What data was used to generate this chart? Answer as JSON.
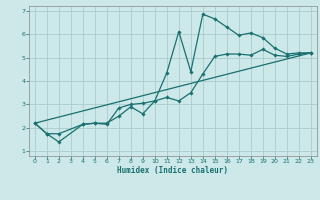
{
  "xlabel": "Humidex (Indice chaleur)",
  "background_color": "#cce8e8",
  "grid_color": "#aacccc",
  "line_color": "#1a7070",
  "xlim": [
    -0.5,
    23.5
  ],
  "ylim": [
    0.8,
    7.2
  ],
  "xticks": [
    0,
    1,
    2,
    3,
    4,
    5,
    6,
    7,
    8,
    9,
    10,
    11,
    12,
    13,
    14,
    15,
    16,
    17,
    18,
    19,
    20,
    21,
    22,
    23
  ],
  "yticks": [
    1,
    2,
    3,
    4,
    5,
    6,
    7
  ],
  "line1_x": [
    0,
    1,
    2,
    4,
    5,
    6,
    7,
    8,
    9,
    10,
    11,
    12,
    13,
    14,
    15,
    16,
    17,
    18,
    19,
    20,
    21,
    22,
    23
  ],
  "line1_y": [
    2.2,
    1.75,
    1.4,
    2.15,
    2.2,
    2.15,
    2.85,
    3.0,
    3.05,
    3.15,
    4.35,
    6.1,
    4.4,
    6.85,
    6.65,
    6.3,
    5.95,
    6.05,
    5.85,
    5.4,
    5.15,
    5.2,
    5.2
  ],
  "line2_x": [
    0,
    1,
    2,
    4,
    5,
    6,
    7,
    8,
    9,
    10,
    11,
    12,
    13,
    14,
    15,
    16,
    17,
    18,
    19,
    20,
    21,
    22,
    23
  ],
  "line2_y": [
    2.2,
    1.75,
    1.75,
    2.15,
    2.2,
    2.2,
    2.5,
    2.9,
    2.6,
    3.15,
    3.3,
    3.15,
    3.5,
    4.3,
    5.05,
    5.15,
    5.15,
    5.1,
    5.35,
    5.1,
    5.05,
    5.15,
    5.2
  ],
  "line3_x": [
    0,
    23
  ],
  "line3_y": [
    2.2,
    5.2
  ]
}
